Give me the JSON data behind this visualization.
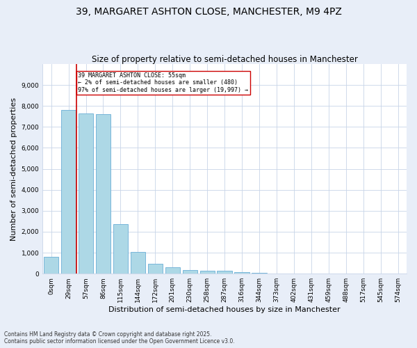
{
  "title": "39, MARGARET ASHTON CLOSE, MANCHESTER, M9 4PZ",
  "subtitle": "Size of property relative to semi-detached houses in Manchester",
  "xlabel": "Distribution of semi-detached houses by size in Manchester",
  "ylabel": "Number of semi-detached properties",
  "bar_labels": [
    "0sqm",
    "29sqm",
    "57sqm",
    "86sqm",
    "115sqm",
    "144sqm",
    "172sqm",
    "201sqm",
    "230sqm",
    "258sqm",
    "287sqm",
    "316sqm",
    "344sqm",
    "373sqm",
    "402sqm",
    "431sqm",
    "459sqm",
    "488sqm",
    "517sqm",
    "545sqm",
    "574sqm"
  ],
  "bar_values": [
    800,
    7800,
    7650,
    7620,
    2380,
    1050,
    460,
    290,
    185,
    130,
    130,
    70,
    30,
    10,
    5,
    2,
    2,
    1,
    1,
    0,
    0
  ],
  "bar_color": "#add8e6",
  "bar_edge_color": "#6aaed6",
  "highlight_color": "#cc0000",
  "annotation_text": "39 MARGARET ASHTON CLOSE: 55sqm\n← 2% of semi-detached houses are smaller (480)\n97% of semi-detached houses are larger (19,997) →",
  "ylim": [
    0,
    10000
  ],
  "yticks": [
    0,
    1000,
    2000,
    3000,
    4000,
    5000,
    6000,
    7000,
    8000,
    9000
  ],
  "footer_line1": "Contains HM Land Registry data © Crown copyright and database right 2025.",
  "footer_line2": "Contains public sector information licensed under the Open Government Licence v3.0.",
  "bg_color": "#e8eef8",
  "plot_bg_color": "#ffffff",
  "grid_color": "#c8d4e8",
  "title_fontsize": 10,
  "subtitle_fontsize": 8.5,
  "axis_label_fontsize": 8,
  "tick_fontsize": 6.5,
  "footer_fontsize": 5.5
}
